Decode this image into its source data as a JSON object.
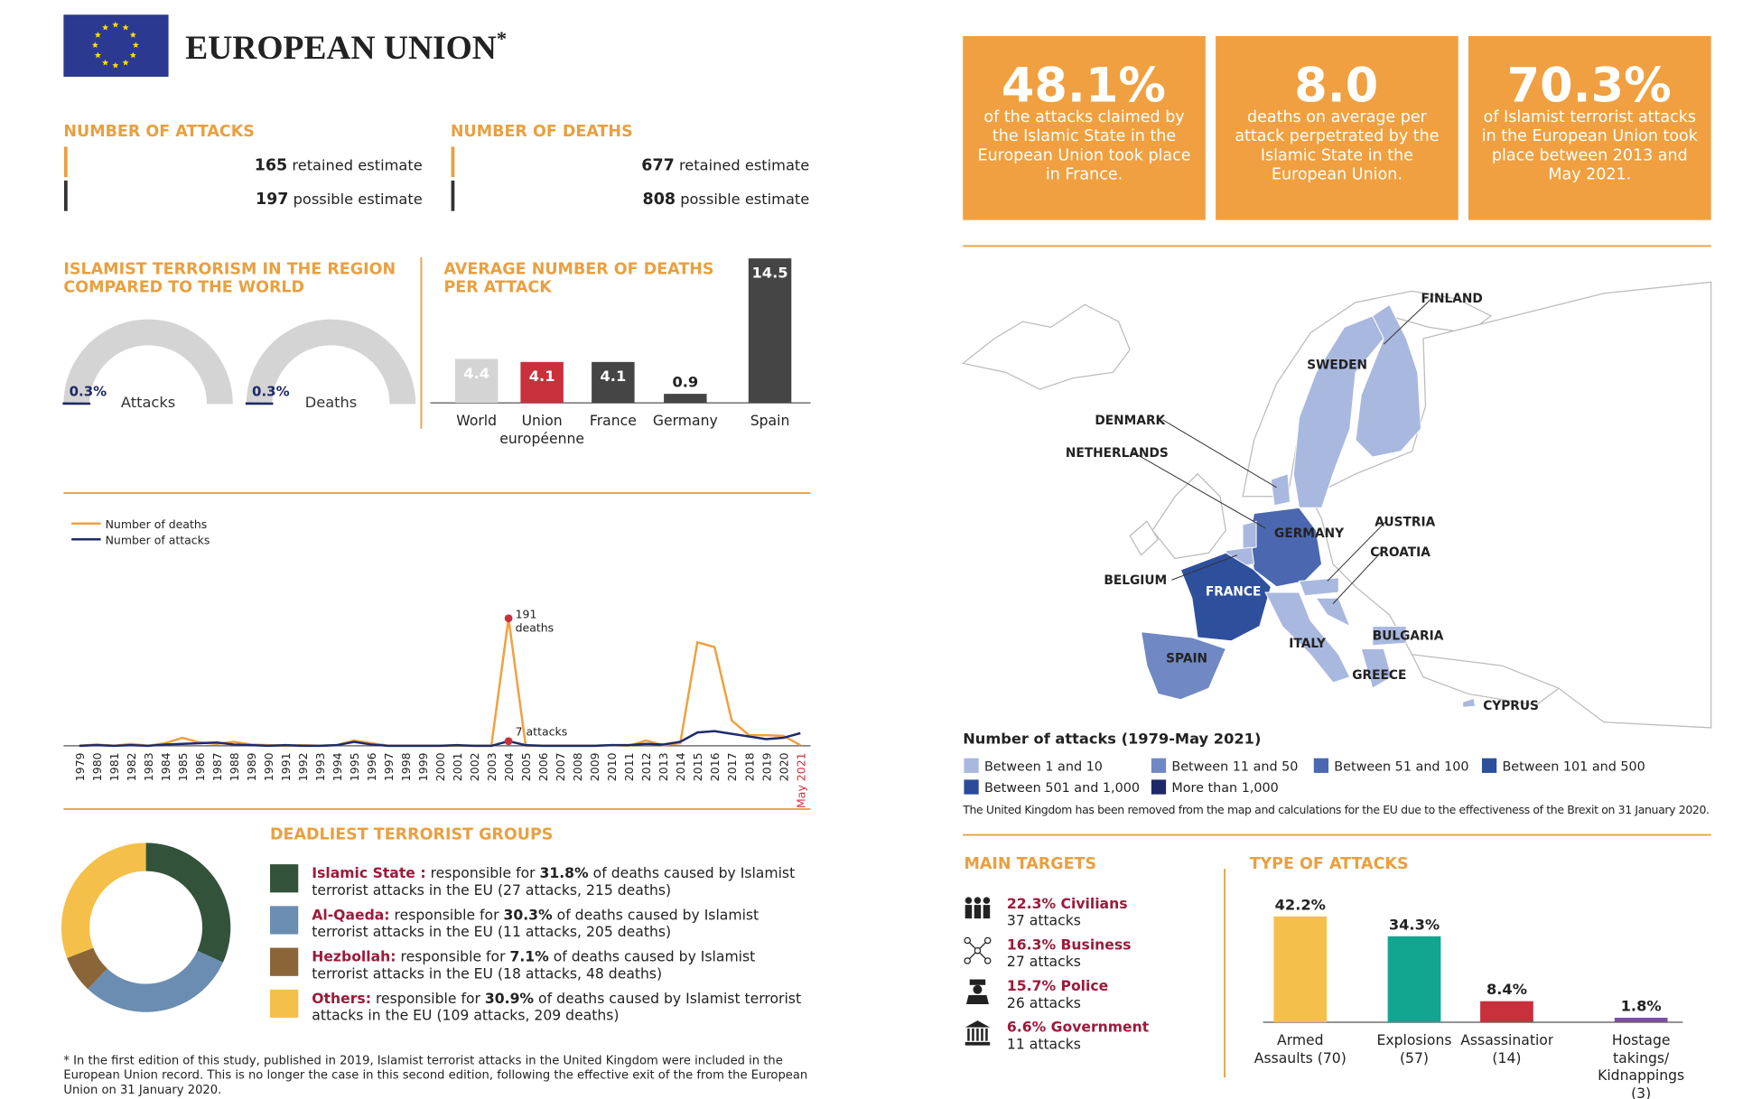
{
  "header": {
    "title": "EUROPEAN UNION",
    "title_mark": "*"
  },
  "stats": [
    {
      "value": "48.1%",
      "text": "of the attacks claimed by the Islamic State in the European Union took place in France."
    },
    {
      "value": "8.0",
      "text": "deaths on average per attack perpetrated by the Islamic State in the European Union."
    },
    {
      "value": "70.3%",
      "text": "of Islamist terrorist attacks in the European Union took place between 2013 and May 2021."
    }
  ],
  "attacks": {
    "title": "NUMBER OF ATTACKS",
    "rows": [
      {
        "value": 165,
        "label": "retained estimate"
      },
      {
        "value": 197,
        "label": "possible estimate"
      }
    ]
  },
  "deaths": {
    "title": "NUMBER OF DEATHS",
    "rows": [
      {
        "value": 677,
        "label": "retained estimate"
      },
      {
        "value": 808,
        "label": "possible estimate"
      }
    ]
  },
  "chart_data": [
    {
      "type": "gauge",
      "title": "ISLAMIST TERRORISM IN THE REGION COMPARED TO THE WORLD",
      "categories": [
        "Attacks",
        "Deaths"
      ],
      "values": [
        0.3,
        0.3
      ],
      "value_labels": [
        "0.3%",
        "0.3%"
      ],
      "color": "#1f2a6b",
      "track_color": "#d4d4d4",
      "ylim": [
        0,
        100
      ]
    },
    {
      "type": "bar",
      "title": "AVERAGE NUMBER OF DEATHS PER ATTACK",
      "categories": [
        "World",
        "Union européenne",
        "France",
        "Germany",
        "Spain"
      ],
      "values": [
        4.4,
        4.1,
        4.1,
        0.9,
        14.5
      ],
      "colors": [
        "#d4d4d4",
        "#c8303c",
        "#454545",
        "#454545",
        "#454545"
      ],
      "ylim": [
        0,
        14.5
      ]
    },
    {
      "type": "line",
      "categories": [
        "1979",
        "1980",
        "1981",
        "1982",
        "1983",
        "1984",
        "1985",
        "1986",
        "1987",
        "1988",
        "1989",
        "1990",
        "1991",
        "1992",
        "1993",
        "1994",
        "1995",
        "1996",
        "1997",
        "1998",
        "1999",
        "2000",
        "2001",
        "2002",
        "2003",
        "2004",
        "2005",
        "2006",
        "2007",
        "2008",
        "2009",
        "2010",
        "2011",
        "2012",
        "2013",
        "2014",
        "2015",
        "2016",
        "2017",
        "2018",
        "2019",
        "2020",
        "May 2021"
      ],
      "series": [
        {
          "name": "Number of deaths",
          "color": "#f0a040",
          "values": [
            0,
            2,
            0,
            3,
            0,
            4,
            12,
            5,
            3,
            6,
            2,
            1,
            0,
            1,
            0,
            1,
            8,
            4,
            0,
            0,
            0,
            0,
            0,
            0,
            0,
            191,
            0,
            0,
            0,
            0,
            0,
            1,
            0,
            8,
            1,
            4,
            155,
            148,
            38,
            16,
            16,
            15,
            1
          ]
        },
        {
          "name": "Number of attacks",
          "color": "#1f2a6b",
          "values": [
            0,
            1,
            0,
            1,
            0,
            2,
            3,
            4,
            5,
            2,
            1,
            0,
            1,
            0,
            0,
            1,
            6,
            2,
            0,
            0,
            0,
            0,
            1,
            0,
            0,
            7,
            1,
            0,
            0,
            0,
            0,
            1,
            1,
            3,
            2,
            6,
            20,
            22,
            18,
            14,
            10,
            12,
            19
          ]
        }
      ],
      "annotations": [
        {
          "category": "2004",
          "text": "191 deaths"
        },
        {
          "category": "2004",
          "text": "7 attacks"
        }
      ],
      "highlight_color": "#c8303c",
      "ylim": [
        0,
        200
      ]
    },
    {
      "type": "donut",
      "title": "DEADLIEST TERRORIST GROUPS",
      "categories": [
        "Islamic State :",
        "Al-Qaeda:",
        "Hezbollah:",
        "Others:"
      ],
      "values": [
        31.8,
        30.3,
        7.1,
        30.9
      ],
      "value_labels": [
        "31.8%",
        "30.3%",
        "7.1%",
        "30.9%"
      ],
      "colors": [
        "#33523a",
        "#6b8db2",
        "#8a6538",
        "#f4c04a"
      ],
      "descriptions": [
        {
          "before": "responsible for ",
          "after": " of deaths caused by Islamist terrorist attacks in the EU (27 attacks, 215 deaths)"
        },
        {
          "before": "responsible for ",
          "after": " of deaths caused by Islamist terrorist attacks in the EU (11 attacks, 205 deaths)"
        },
        {
          "before": "responsible for ",
          "after": " of deaths caused by Islamist terrorist attacks in the EU (18 attacks, 48 deaths)"
        },
        {
          "before": "responsible for ",
          "after": " of deaths caused by Islamist terrorist attacks in the EU (109 attacks, 209 deaths)"
        }
      ]
    },
    {
      "type": "bar",
      "title": "TYPE OF ATTACKS",
      "categories": [
        "Armed Assaults (70)",
        "Explosions (57)",
        "Assassinations (14)",
        "Hostage takings/ Kidnappings (3)"
      ],
      "values": [
        42.2,
        34.3,
        8.4,
        1.8
      ],
      "value_labels": [
        "42.2%",
        "34.3%",
        "8.4%",
        "1.8%"
      ],
      "colors": [
        "#f4c04a",
        "#12a690",
        "#c8303c",
        "#7b4fa0"
      ],
      "ylim": [
        0,
        45
      ]
    }
  ],
  "map": {
    "title": "Number of attacks (1979-May 2021)",
    "legend": [
      {
        "label": "Between 1 and 10",
        "color": "#a9b8df"
      },
      {
        "label": "Between 11 and 50",
        "color": "#7088c4"
      },
      {
        "label": "Between 51 and 100",
        "color": "#4a67b0"
      },
      {
        "label": "Between 101 and 500",
        "color": "#2d4f9c"
      },
      {
        "label": "Between 501 and 1,000",
        "color": "#2a4a9a"
      },
      {
        "label": "More than 1,000",
        "color": "#1d2868"
      }
    ],
    "labels": [
      "FINLAND",
      "SWEDEN",
      "DENMARK",
      "NETHERLANDS",
      "GERMANY",
      "AUSTRIA",
      "CROATIA",
      "BELGIUM",
      "FRANCE",
      "SPAIN",
      "ITALY",
      "BULGARIA",
      "GREECE",
      "CYPRUS"
    ],
    "note": "The United Kingdom has been removed from the map and calculations for the EU due to the effectiveness of the Brexit on 31 January 2020."
  },
  "targets": {
    "title": "MAIN TARGETS",
    "items": [
      {
        "label": "22.3% Civilians",
        "detail": "37 attacks"
      },
      {
        "label": "16.3% Business",
        "detail": "27 attacks"
      },
      {
        "label": "15.7% Police",
        "detail": "26 attacks"
      },
      {
        "label": "6.6% Government",
        "detail": "11 attacks"
      }
    ]
  },
  "footnote": "* In the first edition of this study, published in 2019, Islamist terrorist attacks in the United Kingdom were included in the European Union record. This is no longer the case in this second edition, following the effective exit of the from the European Union on 31 January 2020."
}
